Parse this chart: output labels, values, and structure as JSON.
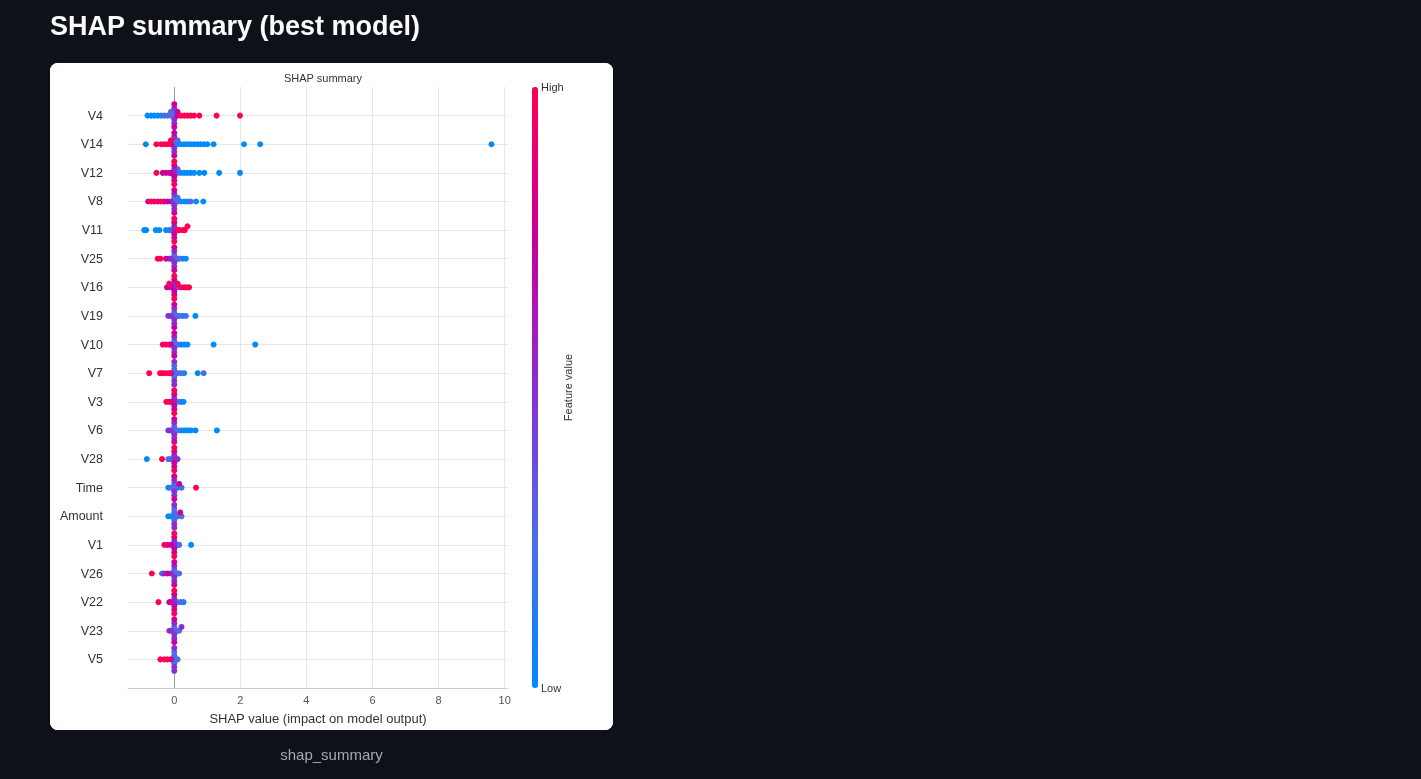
{
  "chart_data": {
    "type": "scatter",
    "orientation": "horizontal",
    "title": "SHAP summary (best model)",
    "subtitle": "SHAP summary",
    "xlabel": "SHAP value (impact on model output)",
    "clabel": "Feature value",
    "annotations": [
      "shap_summary"
    ],
    "categories": [
      "V4",
      "V14",
      "V12",
      "V8",
      "V11",
      "V25",
      "V16",
      "V19",
      "V10",
      "V7",
      "V3",
      "V6",
      "V28",
      "Time",
      "Amount",
      "V1",
      "V26",
      "V22",
      "V23",
      "V5"
    ],
    "xlim": [
      -1.4,
      10.1
    ],
    "xticks": [
      0,
      2,
      4,
      6,
      8,
      10
    ],
    "clim": [
      0,
      1
    ],
    "cticks": [
      {
        "value": 0,
        "label": "Low"
      },
      {
        "value": 1,
        "label": "High"
      }
    ],
    "grid": true,
    "marker": "circle",
    "ref_lines": [
      {
        "axis": "x",
        "value": 0,
        "color": "#999999"
      }
    ],
    "series": [
      {
        "color": "#008bfb",
        "x": [
          "V4",
          "V4",
          "V4",
          "V4",
          "V4",
          "V14",
          "V14",
          "V14",
          "V14",
          "V14",
          "V14",
          "V14",
          "V14",
          "V14",
          "V14",
          "V14",
          "V14",
          "V14",
          "V14",
          "V14",
          "V12",
          "V12",
          "V12",
          "V12",
          "V12",
          "V12",
          "V12",
          "V12",
          "V12",
          "V8",
          "V8",
          "V8",
          "V8",
          "V8",
          "V11",
          "V11",
          "V11",
          "V11",
          "V11",
          "V11",
          "V25",
          "V25",
          "V19",
          "V19",
          "V10",
          "V10",
          "V10",
          "V10",
          "V10",
          "V7",
          "V7",
          "V7",
          "V3",
          "V3",
          "V6",
          "V6",
          "V6",
          "V6",
          "V6",
          "V6",
          "V28",
          "Time",
          "Time",
          "Amount",
          "Amount",
          "Amount",
          "V1",
          "V1",
          "V22",
          "V5"
        ],
        "values": [
          -0.81,
          -0.7,
          -0.6,
          -0.5,
          -0.4,
          -0.86,
          0.1,
          0.2,
          0.3,
          0.4,
          0.5,
          0.6,
          0.7,
          0.8,
          0.9,
          1.0,
          1.19,
          2.11,
          2.6,
          9.6,
          0.2,
          0.3,
          0.4,
          0.5,
          0.6,
          0.76,
          0.91,
          1.36,
          1.99,
          0.2,
          0.3,
          0.4,
          0.66,
          0.88,
          -0.91,
          -0.85,
          -0.56,
          -0.45,
          -0.25,
          -0.15,
          0.25,
          0.35,
          0.25,
          0.64,
          0.2,
          0.3,
          0.4,
          1.19,
          2.45,
          0,
          0.3,
          0.71,
          0.2,
          0.28,
          0.2,
          0.3,
          0.4,
          0.5,
          0.64,
          1.29,
          -0.83,
          -0.18,
          0.1,
          0,
          -0.18,
          -0.1,
          0.1,
          0.51,
          0.28,
          0
        ]
      },
      {
        "color": "#4f6be6",
        "x": [
          "V4",
          "V4",
          "V4",
          "V4",
          "V4",
          "V4",
          "V14",
          "V14",
          "V14",
          "V12",
          "V12",
          "V8",
          "V8",
          "V8",
          "V8",
          "V8",
          "V11",
          "V25",
          "V25",
          "V25",
          "V25",
          "V16",
          "V19",
          "V19",
          "V19",
          "V19",
          "V19",
          "V10",
          "V10",
          "V10",
          "V7",
          "V7",
          "V7",
          "V7",
          "V7",
          "V7",
          "V3",
          "V6",
          "V6",
          "V6",
          "V28",
          "V28",
          "Time",
          "Time",
          "Time",
          "Time",
          "Amount",
          "Amount",
          "Amount",
          "Amount",
          "Amount",
          "V1",
          "V26",
          "V26",
          "V26",
          "V26",
          "V26",
          "V22",
          "V22",
          "V23",
          "V23",
          "V23",
          "V23",
          "V5",
          "V5",
          "V5",
          "V5"
        ],
        "values": [
          0,
          0,
          -0.3,
          -0.2,
          -0.1,
          -0.1,
          0,
          0,
          0.1,
          0.1,
          0.1,
          0,
          0,
          0.1,
          0.1,
          0.5,
          -0.1,
          0,
          0,
          0.1,
          0.15,
          0.1,
          0,
          0,
          0.1,
          0.15,
          0.35,
          0,
          0,
          0.1,
          0,
          0,
          0,
          0.1,
          0.2,
          0.89,
          0.1,
          0,
          0,
          0.1,
          -0.18,
          -0.1,
          0,
          0,
          -0.1,
          0.22,
          0,
          0,
          0,
          0.1,
          0.22,
          0.15,
          0,
          0,
          -0.37,
          0.1,
          0.15,
          0.1,
          0.2,
          0,
          0,
          0.1,
          0.15,
          0,
          0,
          0,
          0.1
        ]
      },
      {
        "color": "#8a2fcf",
        "x": [
          "V4",
          "V4",
          "V4",
          "V14",
          "V14",
          "V14",
          "V12",
          "V12",
          "V8",
          "V8",
          "V8",
          "V8",
          "V11",
          "V11",
          "V25",
          "V25",
          "V25",
          "V25",
          "V25",
          "V16",
          "V16",
          "V19",
          "V19",
          "V19",
          "V19",
          "V19",
          "V10",
          "V10",
          "V10",
          "V7",
          "V7",
          "V7",
          "V3",
          "V3",
          "V6",
          "V6",
          "V6",
          "V6",
          "V6",
          "V28",
          "V28",
          "V28",
          "Time",
          "Time",
          "Time",
          "Amount",
          "Amount",
          "Amount",
          "V1",
          "V1",
          "V26",
          "V26",
          "V26",
          "V26",
          "V26",
          "V22",
          "V22",
          "V22",
          "V23",
          "V23",
          "V23",
          "V23",
          "V23",
          "V23",
          "V5",
          "V5",
          "V5"
        ],
        "values": [
          0,
          0,
          0,
          0,
          0,
          0,
          0,
          0,
          0,
          0,
          0,
          -0.1,
          0,
          0,
          0,
          0,
          0,
          -0.15,
          -0.1,
          0,
          0,
          0,
          0,
          0,
          -0.18,
          -0.1,
          0,
          0,
          0,
          0,
          0,
          0,
          0,
          0,
          0,
          0,
          0,
          -0.18,
          -0.1,
          0,
          0,
          0.1,
          0,
          0,
          0,
          0,
          0,
          0,
          0,
          0,
          0,
          0,
          0,
          -0.3,
          -0.1,
          0,
          0,
          -0.1,
          0,
          0,
          0,
          -0.15,
          -0.1,
          0.22,
          0,
          0,
          0
        ]
      },
      {
        "color": "#c8009c",
        "x": [
          "V4",
          "V4",
          "V4",
          "V4",
          "V14",
          "V14",
          "V14",
          "V12",
          "V12",
          "V12",
          "V12",
          "V12",
          "V12",
          "V12",
          "V8",
          "V8",
          "V8",
          "V8",
          "V8",
          "V8",
          "V11",
          "V11",
          "V11",
          "V11",
          "V25",
          "V25",
          "V25",
          "V16",
          "V16",
          "V16",
          "V16",
          "V16",
          "V16",
          "V19",
          "V19",
          "V10",
          "V10",
          "V10",
          "V10",
          "V7",
          "V3",
          "V3",
          "V3",
          "V3",
          "V6",
          "V6",
          "V28",
          "V28",
          "V28",
          "Time",
          "Time",
          "Time",
          "Amount",
          "V1",
          "V1",
          "V1",
          "V1",
          "V1",
          "V26",
          "V26",
          "V26",
          "V22",
          "V22",
          "V22",
          "V22",
          "V23",
          "V23",
          "V5"
        ],
        "values": [
          0,
          0,
          0.1,
          0.1,
          0,
          0,
          -0.1,
          0,
          0,
          0,
          -0.35,
          -0.25,
          -0.15,
          -0.1,
          0,
          0,
          -0.79,
          -0.5,
          -0.3,
          -0.2,
          0,
          0,
          0,
          0.15,
          0,
          0,
          -0.25,
          0,
          0,
          0,
          -0.22,
          -0.1,
          0.3,
          0,
          0,
          0,
          0,
          -0.15,
          -0.1,
          -0.1,
          0,
          0,
          0,
          -0.1,
          0,
          0,
          0,
          0,
          0,
          0,
          0,
          0.15,
          0.18,
          0,
          0,
          0,
          -0.2,
          -0.1,
          0,
          0,
          -0.2,
          0,
          0,
          0,
          -0.15,
          0,
          0,
          -0.1
        ]
      },
      {
        "color": "#ff0052",
        "x": [
          "V4",
          "V4",
          "V4",
          "V4",
          "V4",
          "V4",
          "V4",
          "V4",
          "V14",
          "V14",
          "V14",
          "V14",
          "V14",
          "V12",
          "V12",
          "V12",
          "V8",
          "V8",
          "V8",
          "V11",
          "V11",
          "V11",
          "V11",
          "V11",
          "V11",
          "V25",
          "V25",
          "V16",
          "V16",
          "V16",
          "V16",
          "V16",
          "V16",
          "V16",
          "V10",
          "V10",
          "V7",
          "V7",
          "V7",
          "V7",
          "V7",
          "V3",
          "V3",
          "V3",
          "V3",
          "V28",
          "V28",
          "V28",
          "Time",
          "V1",
          "V1",
          "V1",
          "V26",
          "V22",
          "V22",
          "V22",
          "V5",
          "V5",
          "V5"
        ],
        "values": [
          0.2,
          0.3,
          0.4,
          0.5,
          0.6,
          0.76,
          1.28,
          1.99,
          -0.54,
          -0.4,
          -0.3,
          -0.2,
          -0.1,
          0,
          0,
          -0.54,
          -0.7,
          -0.6,
          -0.4,
          0,
          0,
          0.1,
          0.25,
          0.32,
          0.4,
          -0.5,
          -0.42,
          0,
          0,
          -0.15,
          0.1,
          0.2,
          0.38,
          0.45,
          -0.35,
          -0.25,
          -0.76,
          -0.43,
          -0.35,
          -0.25,
          -0.15,
          0,
          0,
          -0.24,
          -0.15,
          0,
          0,
          -0.37,
          0.66,
          0,
          0,
          -0.3,
          -0.68,
          0,
          0,
          -0.48,
          -0.42,
          -0.3,
          -0.2
        ]
      }
    ]
  }
}
